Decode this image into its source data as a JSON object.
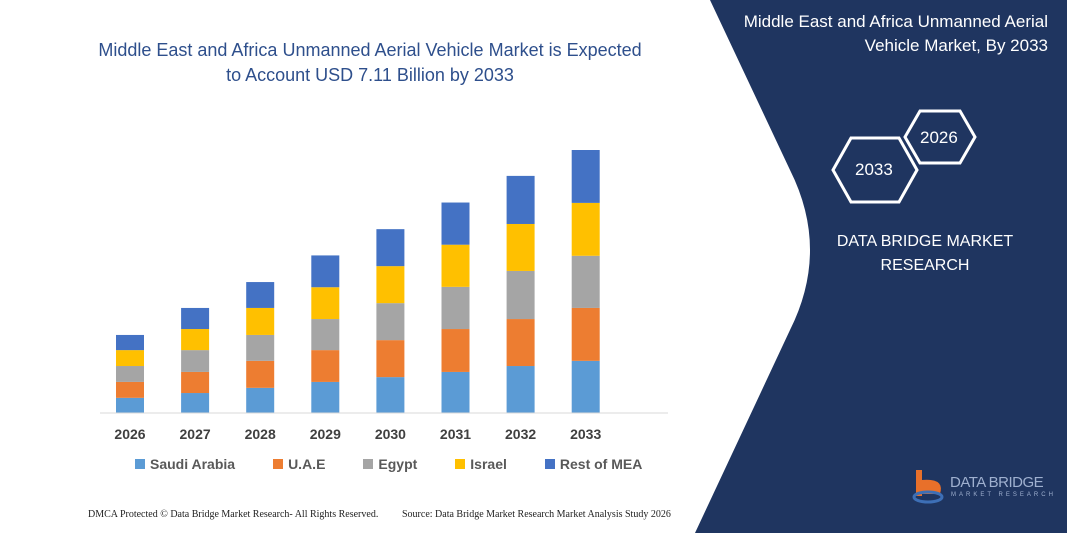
{
  "chart_data": {
    "type": "bar",
    "stacked": true,
    "title": "Middle East and Africa Unmanned Aerial Vehicle Market is Expected to Account USD 7.11 Billion by 2033",
    "categories": [
      "2026",
      "2027",
      "2028",
      "2029",
      "2030",
      "2031",
      "2032",
      "2033"
    ],
    "series": [
      {
        "name": "Saudi Arabia",
        "color": "#5b9bd5",
        "values": [
          0.41,
          0.54,
          0.68,
          0.84,
          0.97,
          1.11,
          1.27,
          1.41
        ]
      },
      {
        "name": "U.A.E",
        "color": "#ed7d31",
        "values": [
          0.43,
          0.57,
          0.73,
          0.86,
          1.0,
          1.16,
          1.27,
          1.43
        ]
      },
      {
        "name": "Egypt",
        "color": "#a5a5a5",
        "values": [
          0.43,
          0.59,
          0.7,
          0.84,
          1.0,
          1.14,
          1.3,
          1.41
        ]
      },
      {
        "name": "Israel",
        "color": "#ffc000",
        "values": [
          0.43,
          0.57,
          0.73,
          0.86,
          1.0,
          1.14,
          1.27,
          1.43
        ]
      },
      {
        "name": "Rest of MEA",
        "color": "#4472c4",
        "values": [
          0.41,
          0.57,
          0.7,
          0.86,
          1.0,
          1.14,
          1.3,
          1.43
        ]
      }
    ],
    "ylim": [
      0,
      7.11
    ],
    "grid": false,
    "legend": "bottom"
  },
  "side": {
    "title": "Middle East and Africa Unmanned Aerial Vehicle Market, By 2033",
    "hex_start": "2026",
    "hex_end": "2033",
    "brand": "DATA BRIDGE MARKET RESEARCH",
    "logo_text": "DATA BRIDGE",
    "logo_sub": "MARKET RESEARCH",
    "panel_color": "#1f3560"
  },
  "footer": {
    "left": "DMCA Protected © Data Bridge Market Research- All Rights Reserved.",
    "right": "Source: Data Bridge Market Research Market Analysis Study 2026"
  }
}
